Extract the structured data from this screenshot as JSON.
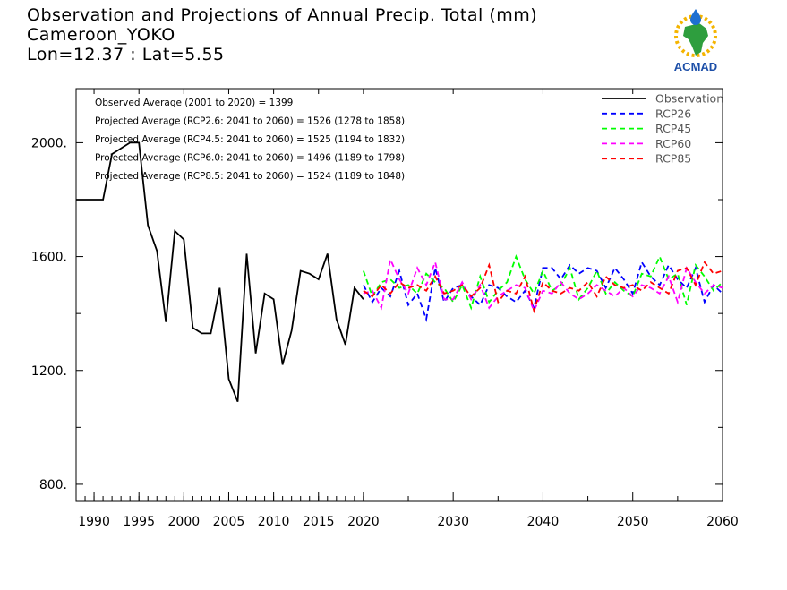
{
  "header": {
    "title": "Observation and Projections of Annual Precip. Total (mm)",
    "station": "Cameroon_YOKO",
    "coords": "Lon=12.37 : Lat=5.55"
  },
  "logo": {
    "text": "ACMAD",
    "icon": "africa-raindrop-sun-icon"
  },
  "chart_data": {
    "type": "line",
    "title": "Observation and Projections of Annual Precip. Total (mm)",
    "xlim": [
      1988,
      2060
    ],
    "ylim": [
      740,
      2190
    ],
    "x_ticks": [
      1990,
      1995,
      2000,
      2005,
      2010,
      2015,
      2020,
      2030,
      2040,
      2050,
      2060
    ],
    "x_tick_labels": [
      "1990",
      "1995",
      "2000",
      "2005",
      "2010",
      "2015",
      "2020",
      "2030",
      "2040",
      "2050",
      "2060"
    ],
    "y_ticks": [
      800,
      1200,
      1600,
      2000
    ],
    "y_tick_labels": [
      "800.",
      "1200.",
      "1600.",
      "2000."
    ],
    "annotations": [
      "Observed Average (2001 to 2020) = 1399",
      "Projected Average (RCP2.6: 2041 to 2060) = 1526 (1278 to 1858)",
      "Projected Average (RCP4.5: 2041 to 2060) = 1525 (1194 to 1832)",
      "Projected Average (RCP6.0: 2041 to 2060) = 1496 (1189 to 1798)",
      "Projected Average (RCP8.5: 2041 to 2060) = 1524 (1189 to 1848)"
    ],
    "legend_position": "top-right",
    "series": [
      {
        "name": "Observation",
        "color": "#000000",
        "style": "solid",
        "x": [
          1988,
          1989,
          1990,
          1991,
          1992,
          1993,
          1994,
          1995,
          1996,
          1997,
          1998,
          1999,
          2000,
          2001,
          2002,
          2003,
          2004,
          2005,
          2006,
          2007,
          2008,
          2009,
          2010,
          2011,
          2012,
          2013,
          2014,
          2015,
          2016,
          2017,
          2018,
          2019,
          2020
        ],
        "y": [
          1800,
          1800,
          1800,
          1800,
          1960,
          1980,
          2000,
          2000,
          1710,
          1620,
          1370,
          1690,
          1660,
          1350,
          1330,
          1330,
          1490,
          1170,
          1090,
          1610,
          1260,
          1470,
          1450,
          1220,
          1340,
          1550,
          1540,
          1520,
          1610,
          1380,
          1290,
          1490,
          1450
        ]
      },
      {
        "name": "RCP26",
        "color": "#0000ff",
        "style": "dashed",
        "x": [
          2020,
          2021,
          2022,
          2023,
          2024,
          2025,
          2026,
          2027,
          2028,
          2029,
          2030,
          2031,
          2032,
          2033,
          2034,
          2035,
          2036,
          2037,
          2038,
          2039,
          2040,
          2041,
          2042,
          2043,
          2044,
          2045,
          2046,
          2047,
          2048,
          2049,
          2050,
          2051,
          2052,
          2053,
          2054,
          2055,
          2056,
          2057,
          2058,
          2059,
          2060
        ],
        "y": [
          1500,
          1440,
          1490,
          1460,
          1550,
          1430,
          1470,
          1380,
          1560,
          1440,
          1490,
          1500,
          1460,
          1430,
          1500,
          1490,
          1460,
          1440,
          1480,
          1420,
          1560,
          1560,
          1520,
          1570,
          1540,
          1560,
          1550,
          1490,
          1560,
          1520,
          1470,
          1580,
          1530,
          1500,
          1570,
          1520,
          1490,
          1560,
          1440,
          1500,
          1470
        ]
      },
      {
        "name": "RCP45",
        "color": "#00ff00",
        "style": "dashed",
        "x": [
          2020,
          2021,
          2022,
          2023,
          2024,
          2025,
          2026,
          2027,
          2028,
          2029,
          2030,
          2031,
          2032,
          2033,
          2034,
          2035,
          2036,
          2037,
          2038,
          2039,
          2040,
          2041,
          2042,
          2043,
          2044,
          2045,
          2046,
          2047,
          2048,
          2049,
          2050,
          2051,
          2052,
          2053,
          2054,
          2055,
          2056,
          2057,
          2058,
          2059,
          2060
        ],
        "y": [
          1550,
          1460,
          1510,
          1520,
          1490,
          1500,
          1470,
          1540,
          1510,
          1490,
          1440,
          1500,
          1420,
          1530,
          1440,
          1480,
          1510,
          1600,
          1520,
          1470,
          1550,
          1480,
          1500,
          1560,
          1450,
          1490,
          1550,
          1470,
          1510,
          1480,
          1460,
          1540,
          1530,
          1600,
          1520,
          1540,
          1430,
          1570,
          1530,
          1480,
          1510
        ]
      },
      {
        "name": "RCP60",
        "color": "#ff00ff",
        "style": "dashed",
        "x": [
          2020,
          2021,
          2022,
          2023,
          2024,
          2025,
          2026,
          2027,
          2028,
          2029,
          2030,
          2031,
          2032,
          2033,
          2034,
          2035,
          2036,
          2037,
          2038,
          2039,
          2040,
          2041,
          2042,
          2043,
          2044,
          2045,
          2046,
          2047,
          2048,
          2049,
          2050,
          2051,
          2052,
          2053,
          2054,
          2055,
          2056,
          2057,
          2058,
          2059,
          2060
        ],
        "y": [
          1470,
          1480,
          1420,
          1590,
          1520,
          1470,
          1560,
          1500,
          1580,
          1450,
          1450,
          1510,
          1450,
          1500,
          1420,
          1460,
          1480,
          1500,
          1490,
          1410,
          1480,
          1470,
          1510,
          1470,
          1450,
          1470,
          1500,
          1480,
          1460,
          1490,
          1460,
          1500,
          1490,
          1470,
          1530,
          1440,
          1560,
          1510,
          1470,
          1500,
          1490
        ]
      },
      {
        "name": "RCP85",
        "color": "#ff0000",
        "style": "dashed",
        "x": [
          2020,
          2021,
          2022,
          2023,
          2024,
          2025,
          2026,
          2027,
          2028,
          2029,
          2030,
          2031,
          2032,
          2033,
          2034,
          2035,
          2036,
          2037,
          2038,
          2039,
          2040,
          2041,
          2042,
          2043,
          2044,
          2045,
          2046,
          2047,
          2048,
          2049,
          2050,
          2051,
          2052,
          2053,
          2054,
          2055,
          2056,
          2057,
          2058,
          2059,
          2060
        ],
        "y": [
          1480,
          1460,
          1500,
          1470,
          1510,
          1490,
          1500,
          1480,
          1530,
          1470,
          1480,
          1500,
          1460,
          1490,
          1570,
          1440,
          1480,
          1470,
          1530,
          1410,
          1510,
          1480,
          1470,
          1490,
          1480,
          1510,
          1460,
          1530,
          1500,
          1490,
          1500,
          1480,
          1510,
          1490,
          1470,
          1550,
          1560,
          1500,
          1580,
          1540,
          1550
        ]
      }
    ]
  }
}
